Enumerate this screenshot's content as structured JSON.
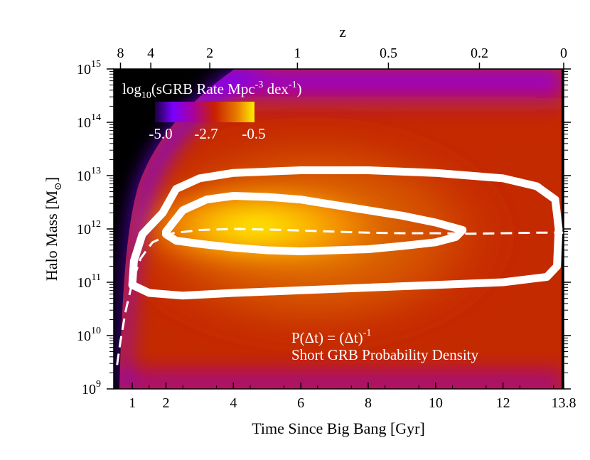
{
  "chart_data": {
    "type": "heatmap",
    "x_axis": {
      "label": "Time Since Big Bang [Gyr]",
      "range": [
        0.45,
        13.8
      ],
      "ticks": [
        1,
        2,
        4,
        6,
        8,
        10,
        12,
        13.8
      ],
      "tick_labels": [
        "1",
        "2",
        "4",
        "6",
        "8",
        "10",
        "12",
        "13.8"
      ]
    },
    "top_axis": {
      "label": "z",
      "ticks": [
        {
          "z": 8,
          "t": 0.65,
          "label": "8"
        },
        {
          "z": 4,
          "t": 1.55,
          "label": "4"
        },
        {
          "z": 2,
          "t": 3.3,
          "label": "2"
        },
        {
          "z": 1,
          "t": 5.9,
          "label": "1"
        },
        {
          "z": 0.5,
          "t": 8.6,
          "label": "0.5"
        },
        {
          "z": 0.2,
          "t": 11.3,
          "label": "0.2"
        },
        {
          "z": 0,
          "t": 13.8,
          "label": "0"
        }
      ]
    },
    "y_axis": {
      "label": "Halo Mass",
      "unit": "[M",
      "unit_sub": "⊙",
      "unit_close": "]",
      "scale": "log",
      "range_log10": [
        9,
        15
      ],
      "ticks": [
        {
          "base": "10",
          "exp": "9"
        },
        {
          "base": "10",
          "exp": "10"
        },
        {
          "base": "10",
          "exp": "11"
        },
        {
          "base": "10",
          "exp": "12"
        },
        {
          "base": "10",
          "exp": "13"
        },
        {
          "base": "10",
          "exp": "14"
        },
        {
          "base": "10",
          "exp": "15"
        }
      ]
    },
    "colorbar": {
      "title_log": "log",
      "title_sub": "10",
      "title_a": "(sGRB Rate Mpc",
      "title_sup1": "-3",
      "title_b": " dex",
      "title_sup2": "-1",
      "title_c": ")",
      "min": -5.0,
      "mid": -2.7,
      "max": -0.5,
      "tick_labels": [
        "-5.0",
        "-2.7",
        "-0.5"
      ],
      "colors": [
        "#1a0040",
        "#7a00ff",
        "#a800a0",
        "#c82000",
        "#e87a00",
        "#ffee00"
      ]
    },
    "contours": [
      {
        "name": "outer",
        "points": [
          [
            1.9,
            12.3
          ],
          [
            2.3,
            12.75
          ],
          [
            3.0,
            12.95
          ],
          [
            4.0,
            13.05
          ],
          [
            6.0,
            13.1
          ],
          [
            8.0,
            13.1
          ],
          [
            10.0,
            13.05
          ],
          [
            11.0,
            13.0
          ],
          [
            12.0,
            12.95
          ],
          [
            13.0,
            12.8
          ],
          [
            13.55,
            12.55
          ],
          [
            13.65,
            12.0
          ],
          [
            13.6,
            11.3
          ],
          [
            13.3,
            11.1
          ],
          [
            12.0,
            11.0
          ],
          [
            10.0,
            10.95
          ],
          [
            8.0,
            10.9
          ],
          [
            6.0,
            10.85
          ],
          [
            4.0,
            10.8
          ],
          [
            2.5,
            10.75
          ],
          [
            1.5,
            10.8
          ],
          [
            1.0,
            10.95
          ],
          [
            1.05,
            11.4
          ],
          [
            1.3,
            11.9
          ],
          [
            1.6,
            12.1
          ],
          [
            1.9,
            12.3
          ]
        ]
      },
      {
        "name": "inner",
        "points": [
          [
            2.0,
            11.95
          ],
          [
            2.5,
            12.35
          ],
          [
            3.2,
            12.55
          ],
          [
            4.0,
            12.62
          ],
          [
            5.0,
            12.6
          ],
          [
            6.0,
            12.55
          ],
          [
            7.0,
            12.45
          ],
          [
            8.0,
            12.35
          ],
          [
            9.0,
            12.25
          ],
          [
            10.0,
            12.12
          ],
          [
            10.8,
            11.98
          ],
          [
            10.6,
            11.85
          ],
          [
            10.0,
            11.75
          ],
          [
            9.0,
            11.68
          ],
          [
            8.0,
            11.62
          ],
          [
            7.0,
            11.6
          ],
          [
            6.0,
            11.58
          ],
          [
            5.0,
            11.6
          ],
          [
            4.0,
            11.65
          ],
          [
            3.0,
            11.72
          ],
          [
            2.3,
            11.78
          ],
          [
            2.0,
            11.9
          ],
          [
            2.0,
            11.95
          ]
        ]
      }
    ],
    "median_track": {
      "points": [
        [
          0.55,
          9.45
        ],
        [
          0.65,
          9.9
        ],
        [
          0.8,
          10.45
        ],
        [
          1.0,
          11.0
        ],
        [
          1.25,
          11.45
        ],
        [
          1.6,
          11.75
        ],
        [
          2.2,
          11.92
        ],
        [
          3.0,
          11.98
        ],
        [
          4.0,
          12.0
        ],
        [
          5.0,
          11.99
        ],
        [
          6.0,
          11.97
        ],
        [
          7.0,
          11.95
        ],
        [
          8.0,
          11.93
        ],
        [
          9.0,
          11.92
        ],
        [
          10.0,
          11.92
        ],
        [
          11.0,
          11.91
        ],
        [
          12.0,
          11.92
        ],
        [
          13.0,
          11.93
        ],
        [
          13.8,
          11.93
        ]
      ]
    },
    "annotations": {
      "line1": "P(Δt) = (Δt)",
      "line1_sup": "-1",
      "line2": "Short GRB Probability Density"
    }
  }
}
